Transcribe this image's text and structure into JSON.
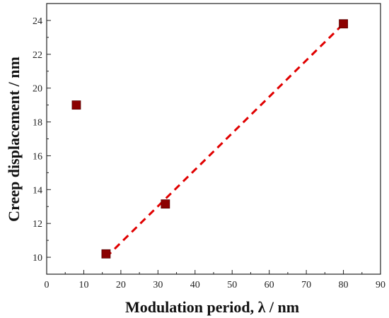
{
  "chart_data": {
    "type": "scatter",
    "xlabel": "Modulation period, λ / nm",
    "ylabel": "Creep displacement / nm",
    "xlim": [
      0,
      90
    ],
    "ylim": [
      9,
      25
    ],
    "x_ticks": [
      0,
      10,
      20,
      30,
      40,
      50,
      60,
      70,
      80,
      90
    ],
    "y_ticks": [
      10,
      12,
      14,
      16,
      18,
      20,
      22,
      24
    ],
    "grid": false,
    "legend": "none",
    "series": [
      {
        "kind": "scatter",
        "marker": "square",
        "color": "#8b0000",
        "x": [
          8,
          16,
          32,
          80
        ],
        "y": [
          19.0,
          10.2,
          13.15,
          23.8
        ]
      },
      {
        "kind": "fit-line",
        "style": "dashed",
        "color": "#e00000",
        "x": [
          16,
          80
        ],
        "y": [
          10.0,
          23.8
        ]
      }
    ]
  }
}
